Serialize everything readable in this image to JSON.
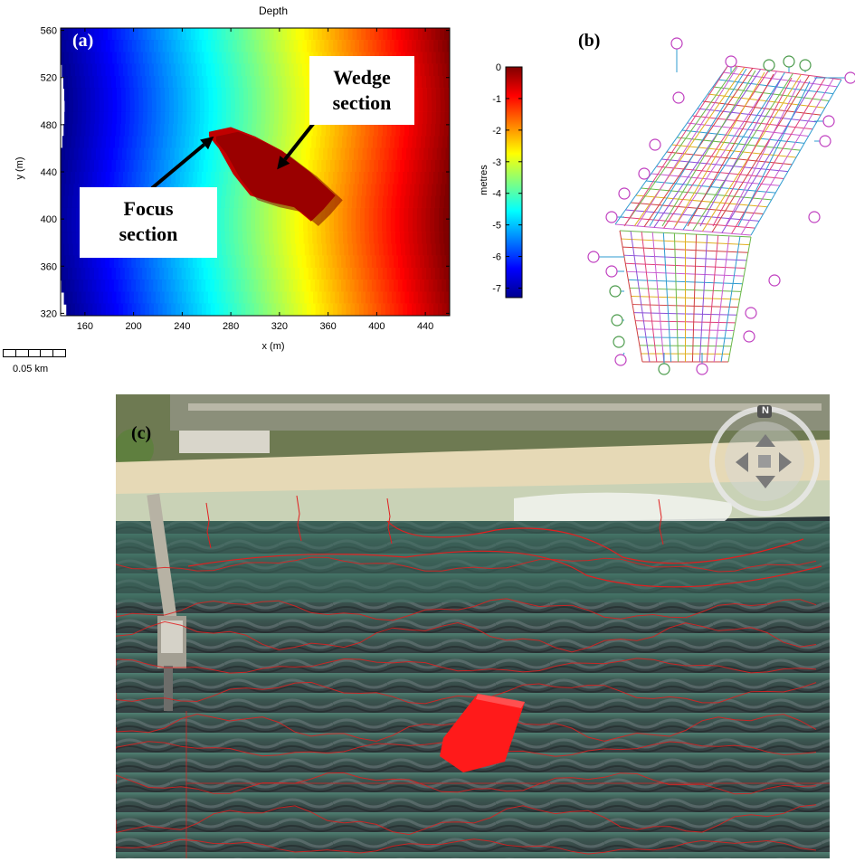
{
  "panel_a": {
    "label": "(a)",
    "callouts": {
      "wedge_line1": "Wedge",
      "wedge_line2": "section",
      "focus_line1": "Focus",
      "focus_line2": "section"
    },
    "scalebar_label": "0.05 km"
  },
  "panel_b": {
    "label": "(b)"
  },
  "panel_c": {
    "label": "(c)",
    "compass_north": "N"
  },
  "chart_data": [
    {
      "type": "heatmap",
      "title": "Depth",
      "xlabel": "x (m)",
      "ylabel": "y (m)",
      "xlim": [
        140,
        460
      ],
      "ylim": [
        318,
        562
      ],
      "xticks": [
        160,
        200,
        240,
        280,
        320,
        360,
        400,
        440
      ],
      "yticks": [
        320,
        360,
        400,
        440,
        480,
        520,
        560
      ],
      "colorbar": {
        "label": "metres",
        "range": [
          -7.3,
          0
        ],
        "ticks": [
          0,
          -1,
          -2,
          -3,
          -4,
          -5,
          -6,
          -7
        ],
        "colormap": "jet"
      },
      "field": {
        "description_values": "depth increases (shallower) toward +x, roughly -7.3 m at x=140 to 0 m at x=460",
        "x_at_min": 140,
        "x_at_max": 460,
        "depth_min": -7.3,
        "depth_max": 0
      },
      "feature": {
        "name": "reef",
        "depth": -0.3,
        "outline_xy": [
          [
            262,
            474
          ],
          [
            280,
            478
          ],
          [
            300,
            470
          ],
          [
            322,
            458
          ],
          [
            345,
            440
          ],
          [
            366,
            420
          ],
          [
            356,
            408
          ],
          [
            346,
            398
          ],
          [
            332,
            410
          ],
          [
            314,
            414
          ],
          [
            296,
            420
          ],
          [
            282,
            438
          ],
          [
            270,
            460
          ],
          [
            262,
            470
          ]
        ]
      },
      "annotations": [
        {
          "text": "Wedge section",
          "arrow_to": [
            318,
            442
          ]
        },
        {
          "text": "Focus section",
          "arrow_to": [
            266,
            470
          ]
        }
      ]
    }
  ],
  "colors": {
    "colormap_jet": [
      "#00008f",
      "#0000ff",
      "#0080ff",
      "#00ffff",
      "#80ff80",
      "#ffff00",
      "#ff8000",
      "#ff0000",
      "#800000"
    ],
    "mesh_colors": [
      "#e0407a",
      "#c85ad0",
      "#2f9bd0",
      "#6bb84a",
      "#e0b020",
      "#d04040",
      "#8a4fd8"
    ],
    "reef_red": "#ff1a1a",
    "contour_red": "#e02020"
  }
}
